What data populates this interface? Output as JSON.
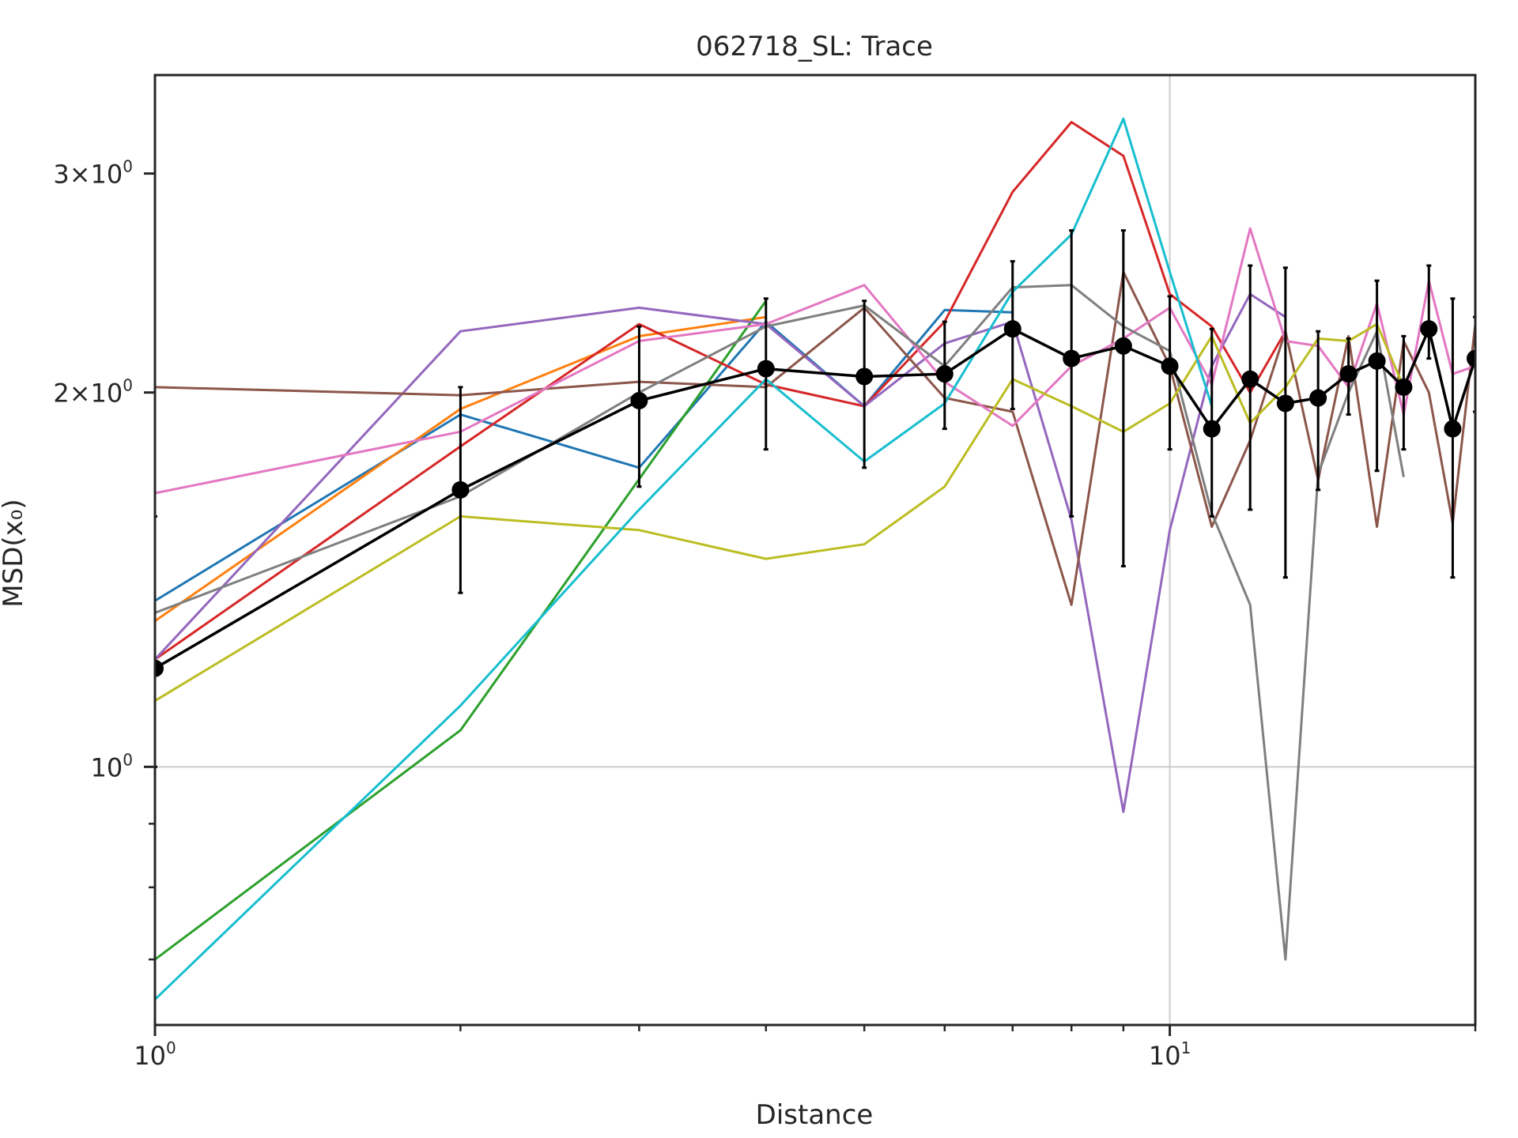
{
  "chart_data": {
    "type": "line",
    "title": "062718_SL: Trace",
    "xlabel": "Distance",
    "ylabel": "MSD(x₀)",
    "x_scale": "log",
    "y_scale": "log",
    "xlim": [
      1,
      20
    ],
    "ylim": [
      0.62,
      3.6
    ],
    "x_ticks": [
      {
        "value": 1,
        "base": "10",
        "exp": "0"
      },
      {
        "value": 10,
        "base": "10",
        "exp": "1"
      }
    ],
    "y_ticks": [
      {
        "value": 1,
        "mant": "",
        "base": "10",
        "exp": "0"
      },
      {
        "value": 2,
        "mant": "2×",
        "base": "10",
        "exp": "0"
      },
      {
        "value": 3,
        "mant": "3×",
        "base": "10",
        "exp": "0"
      }
    ],
    "gridlines": {
      "x": [
        10
      ],
      "y": [
        1
      ]
    },
    "series": [
      {
        "color": "#1f77b4",
        "x": [
          1,
          2,
          3,
          4,
          5,
          6,
          7
        ],
        "y": [
          1.36,
          1.92,
          1.74,
          2.28,
          1.95,
          2.33,
          2.32
        ]
      },
      {
        "color": "#ff7f0e",
        "x": [
          1,
          2,
          3,
          4
        ],
        "y": [
          1.31,
          1.94,
          2.22,
          2.3
        ]
      },
      {
        "color": "#2ca02c",
        "x": [
          1,
          2,
          4
        ],
        "y": [
          0.7,
          1.07,
          2.37
        ]
      },
      {
        "color": "#d62728",
        "x": [
          1,
          2,
          3,
          4,
          5,
          6,
          7,
          8,
          9,
          10,
          11,
          12,
          13
        ],
        "y": [
          1.22,
          1.81,
          2.27,
          2.03,
          1.95,
          2.28,
          2.9,
          3.3,
          3.1,
          2.4,
          2.26,
          2.0,
          2.24
        ]
      },
      {
        "color": "#9467bd",
        "x": [
          1,
          2,
          3,
          4,
          5,
          6,
          7,
          8,
          9,
          10,
          11,
          12,
          13
        ],
        "y": [
          1.22,
          2.24,
          2.34,
          2.27,
          1.95,
          2.19,
          2.28,
          1.58,
          0.92,
          1.55,
          2.1,
          2.4,
          2.3
        ]
      },
      {
        "color": "#8c564b",
        "x": [
          1,
          2,
          3,
          4,
          5,
          6,
          7,
          8,
          9,
          10,
          11,
          12,
          13,
          14,
          15,
          16,
          17,
          18,
          19,
          20
        ],
        "y": [
          2.02,
          1.99,
          2.04,
          2.02,
          2.34,
          1.98,
          1.93,
          1.35,
          2.5,
          2.1,
          1.56,
          1.83,
          2.24,
          1.7,
          2.22,
          1.56,
          2.2,
          2.0,
          1.57,
          2.27
        ]
      },
      {
        "color": "#e377c2",
        "x": [
          1,
          2,
          3,
          4,
          5,
          6,
          7,
          8,
          9,
          10,
          11,
          12,
          13,
          14,
          15,
          16,
          17,
          18,
          19,
          20
        ],
        "y": [
          1.66,
          1.86,
          2.2,
          2.27,
          2.44,
          2.04,
          1.88,
          2.1,
          2.21,
          2.34,
          2.03,
          2.71,
          2.2,
          2.18,
          2.02,
          2.36,
          1.92,
          2.46,
          2.07,
          2.1
        ]
      },
      {
        "color": "#7f7f7f",
        "x": [
          1,
          2,
          3,
          4,
          5,
          6,
          7,
          8,
          9,
          10,
          11,
          12,
          13,
          14,
          15,
          16,
          17
        ],
        "y": [
          1.33,
          1.65,
          2.0,
          2.26,
          2.35,
          2.1,
          2.43,
          2.44,
          2.26,
          2.16,
          1.6,
          1.35,
          0.7,
          1.72,
          2.0,
          2.24,
          1.71
        ]
      },
      {
        "color": "#bcbd22",
        "x": [
          1,
          2,
          3,
          4,
          5,
          6,
          7,
          8,
          9,
          10,
          11,
          12,
          13,
          14,
          15,
          16,
          17
        ],
        "y": [
          1.13,
          1.59,
          1.55,
          1.47,
          1.51,
          1.68,
          2.05,
          1.95,
          1.86,
          1.96,
          2.22,
          1.89,
          2.02,
          2.21,
          2.2,
          2.27,
          2.02
        ]
      },
      {
        "color": "#17becf",
        "x": [
          1,
          2,
          3,
          4,
          5,
          6,
          7,
          8,
          9,
          10,
          11
        ],
        "y": [
          0.65,
          1.12,
          1.61,
          2.05,
          1.76,
          1.96,
          2.41,
          2.68,
          3.32,
          2.5,
          1.95
        ]
      }
    ],
    "mean_series": {
      "color": "#000000",
      "x": [
        1,
        2,
        3,
        4,
        5,
        6,
        7,
        8,
        9,
        10,
        11,
        12,
        13,
        14,
        15,
        16,
        17,
        18,
        19,
        20
      ],
      "y": [
        1.2,
        1.67,
        1.97,
        2.09,
        2.06,
        2.07,
        2.25,
        2.13,
        2.18,
        2.1,
        1.87,
        2.05,
        1.96,
        1.98,
        2.07,
        2.12,
        2.02,
        2.25,
        1.87,
        2.13
      ],
      "err_low": [
        1.0,
        1.38,
        1.68,
        1.8,
        1.74,
        1.87,
        1.94,
        1.59,
        1.45,
        1.8,
        1.59,
        1.61,
        1.42,
        1.67,
        1.92,
        1.73,
        1.8,
        2.13,
        1.42,
        1.93
      ],
      "err_high": [
        1.59,
        2.02,
        2.26,
        2.38,
        2.37,
        2.28,
        2.55,
        2.7,
        2.7,
        2.39,
        2.25,
        2.53,
        2.52,
        2.24,
        2.21,
        2.46,
        2.22,
        2.53,
        2.38,
        2.3
      ]
    }
  }
}
